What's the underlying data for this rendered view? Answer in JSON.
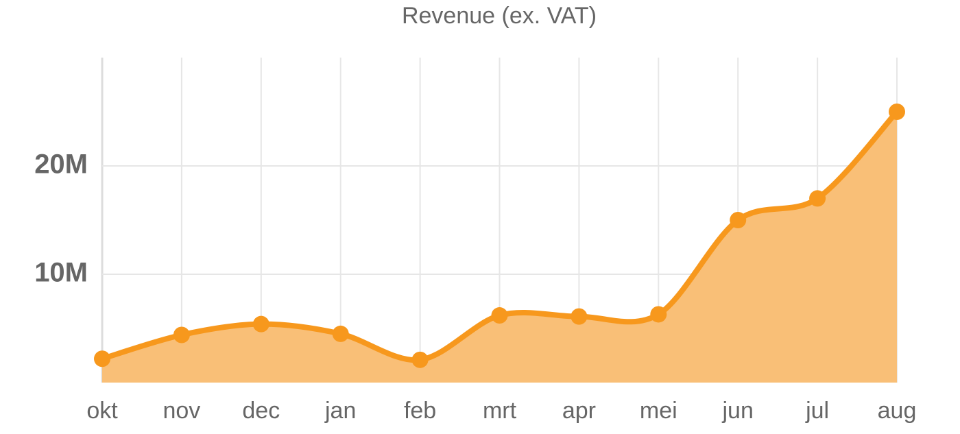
{
  "chart_data": {
    "type": "area",
    "title": "Revenue (ex.  VAT)",
    "categories": [
      "okt",
      "nov",
      "dec",
      "jan",
      "feb",
      "mrt",
      "apr",
      "mei",
      "jun",
      "jul",
      "aug"
    ],
    "values": [
      2200000,
      4400000,
      5400000,
      4500000,
      2100000,
      6200000,
      6100000,
      6300000,
      15000000,
      17000000,
      25000000
    ],
    "color": "#f7981d",
    "fill": "#f9bf77",
    "ylim": [
      0,
      30000000
    ],
    "yticks": [
      {
        "value": 10000000,
        "label": "10M"
      },
      {
        "value": 20000000,
        "label": "20M"
      }
    ],
    "grid": true
  }
}
